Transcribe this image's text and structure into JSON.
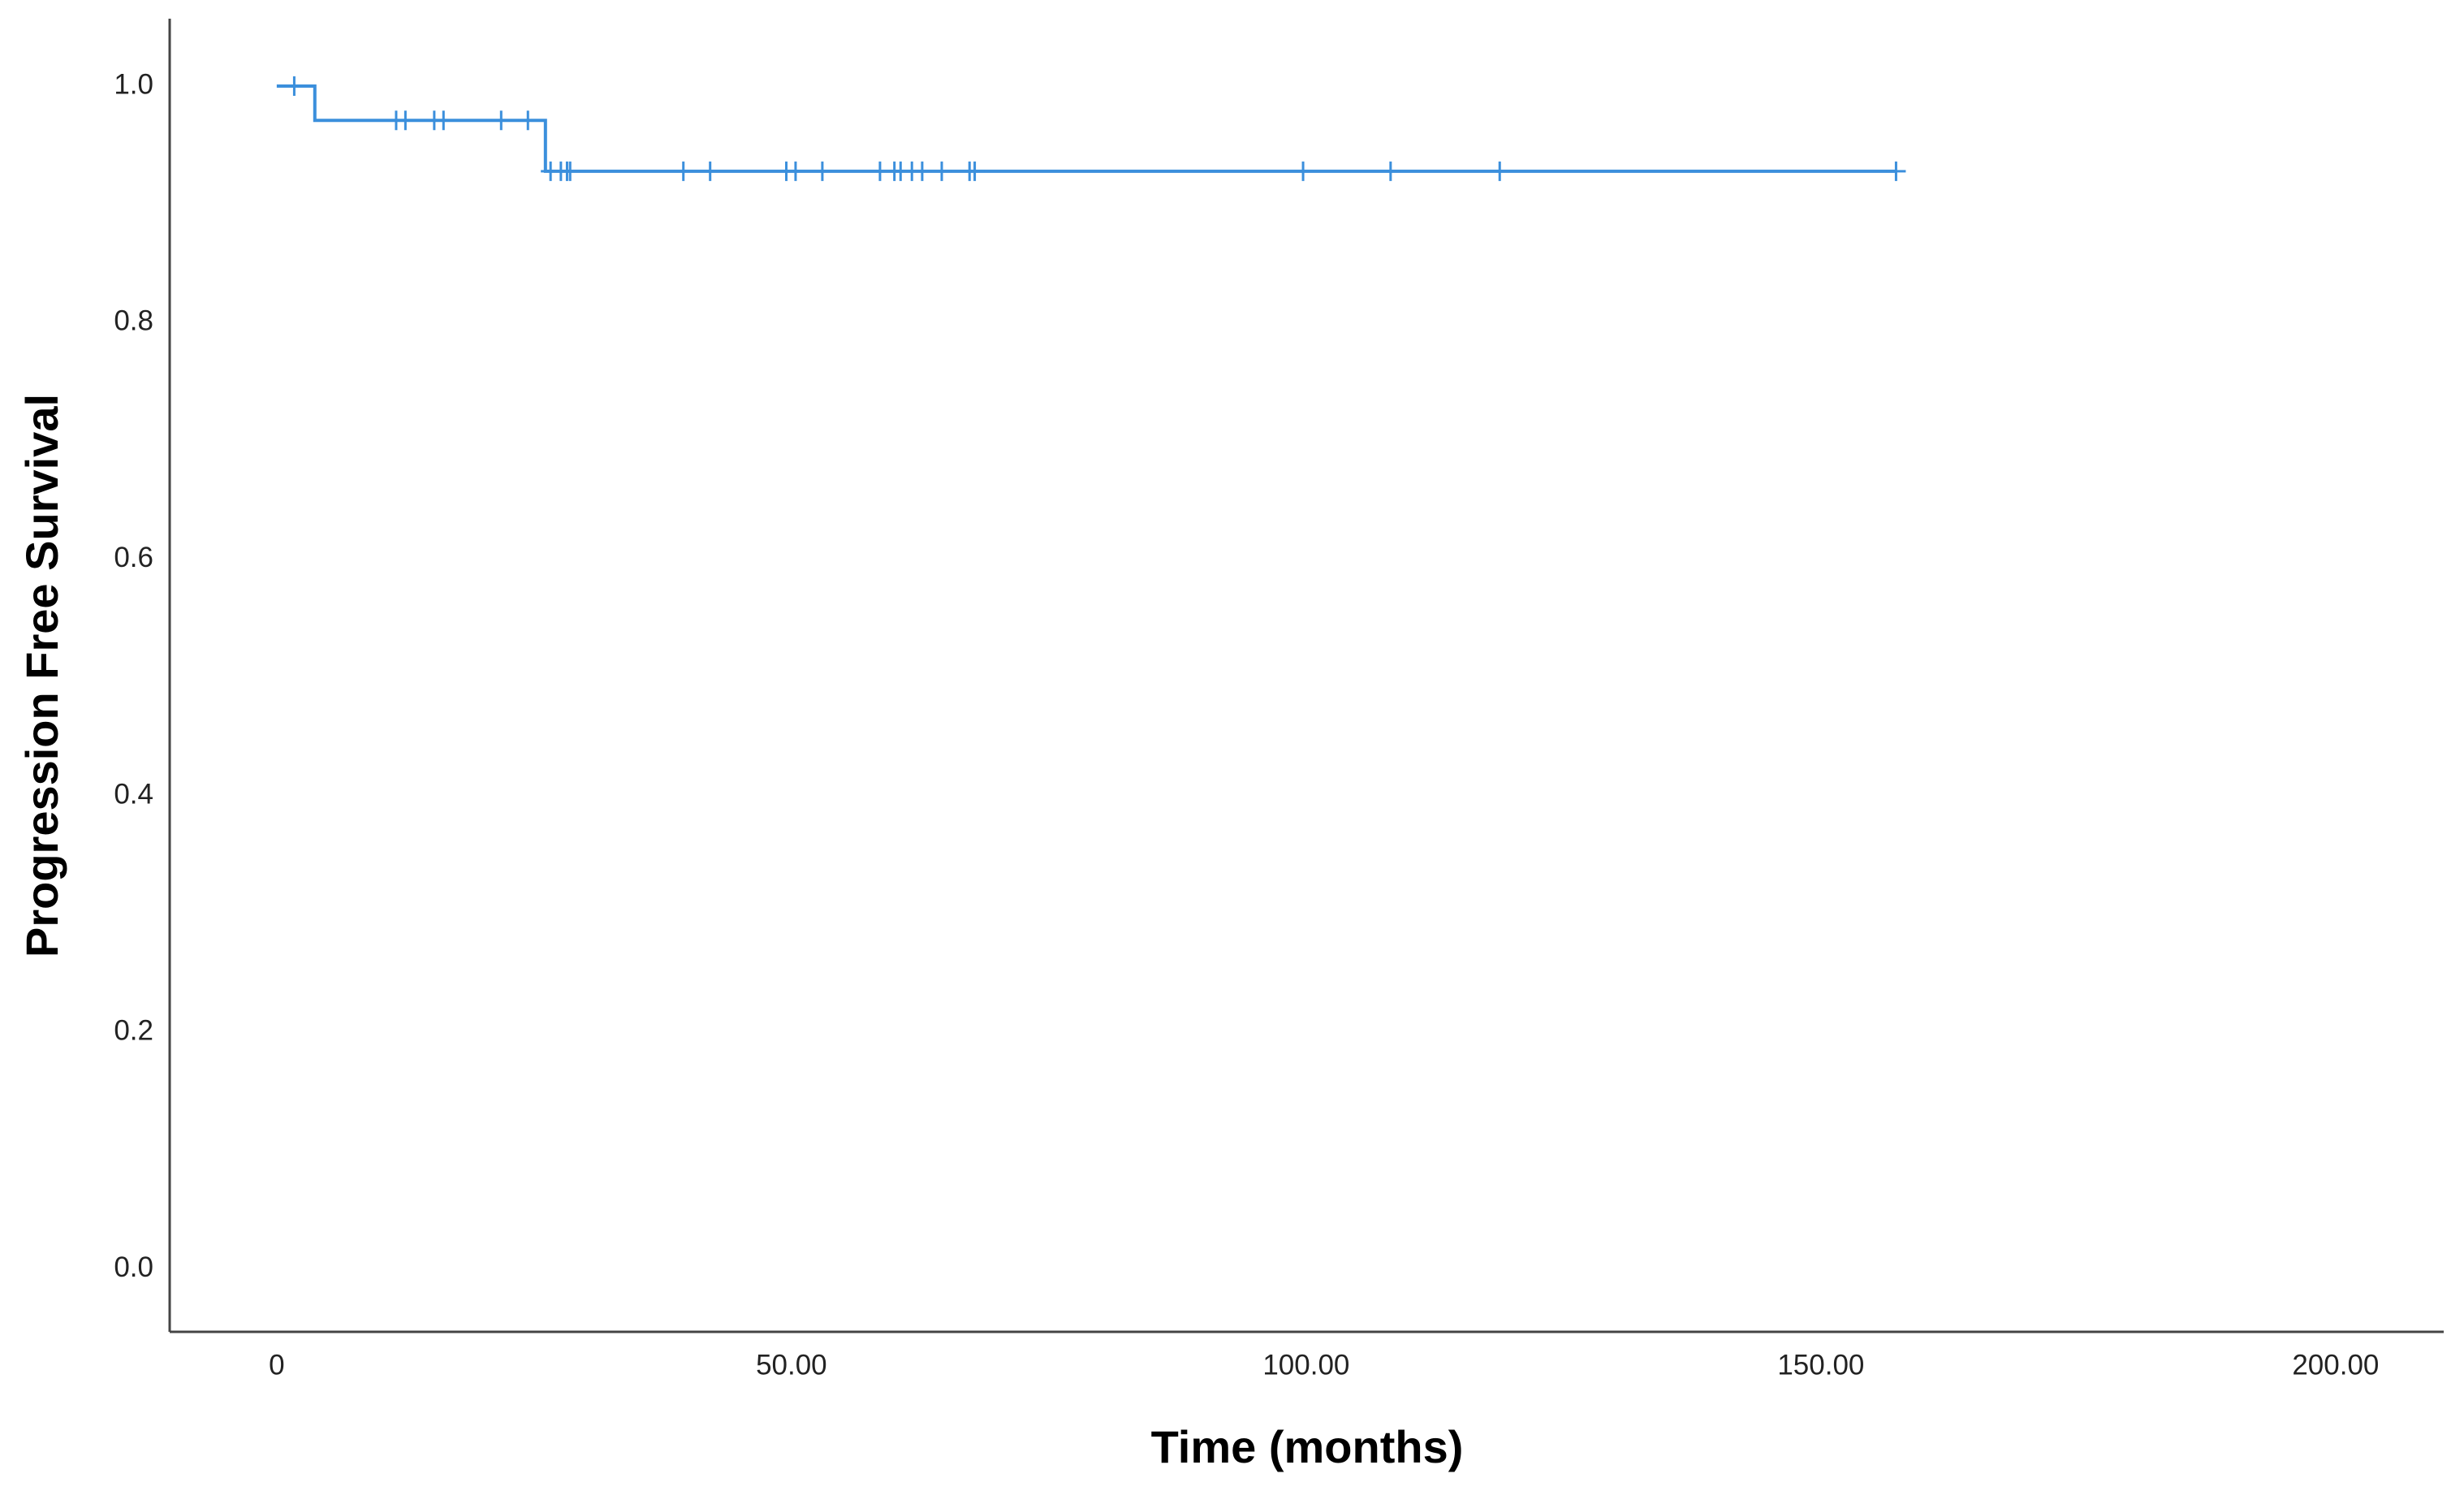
{
  "chart_data": {
    "type": "step",
    "x_label": "Time (months)",
    "y_label": "Progression Free Survival",
    "color": "#3b8fdc",
    "x": [
      0,
      3.7,
      3.7,
      26.1,
      26.1,
      157.4
    ],
    "values": [
      1.0,
      1.0,
      0.971,
      0.971,
      0.928,
      0.928
    ],
    "censored": {
      "x": [
        1.7,
        11.6,
        12.5,
        15.3,
        16.2,
        21.8,
        24.4,
        26.6,
        27.6,
        28.2,
        28.5,
        39.5,
        42.1,
        49.5,
        50.4,
        53.0,
        58.6,
        60.0,
        60.6,
        61.7,
        62.7,
        64.6,
        67.3,
        67.8,
        99.7,
        108.2,
        118.8,
        157.3
      ],
      "values": [
        1.0,
        0.971,
        0.971,
        0.971,
        0.971,
        0.971,
        0.971,
        0.928,
        0.928,
        0.928,
        0.928,
        0.928,
        0.928,
        0.928,
        0.928,
        0.928,
        0.928,
        0.928,
        0.928,
        0.928,
        0.928,
        0.928,
        0.928,
        0.928,
        0.928,
        0.928,
        0.928,
        0.928
      ]
    },
    "xlim": [
      -10.4,
      210.5
    ],
    "ylim": [
      -0.053,
      1.057
    ],
    "xticks": [
      0,
      {
        "value": 50,
        "label": "50.00"
      },
      {
        "value": 100,
        "label": "100.00"
      },
      {
        "value": 150,
        "label": "150.00"
      },
      {
        "value": 200,
        "label": "200.00"
      }
    ],
    "yticks": [
      {
        "value": 0,
        "label": "0.0"
      },
      {
        "value": 0.2,
        "label": "0.2"
      },
      {
        "value": 0.4,
        "label": "0.4"
      },
      {
        "value": 0.6,
        "label": "0.6"
      },
      {
        "value": 0.8,
        "label": "0.8"
      },
      {
        "value": 1.0,
        "label": "1.0"
      }
    ]
  }
}
